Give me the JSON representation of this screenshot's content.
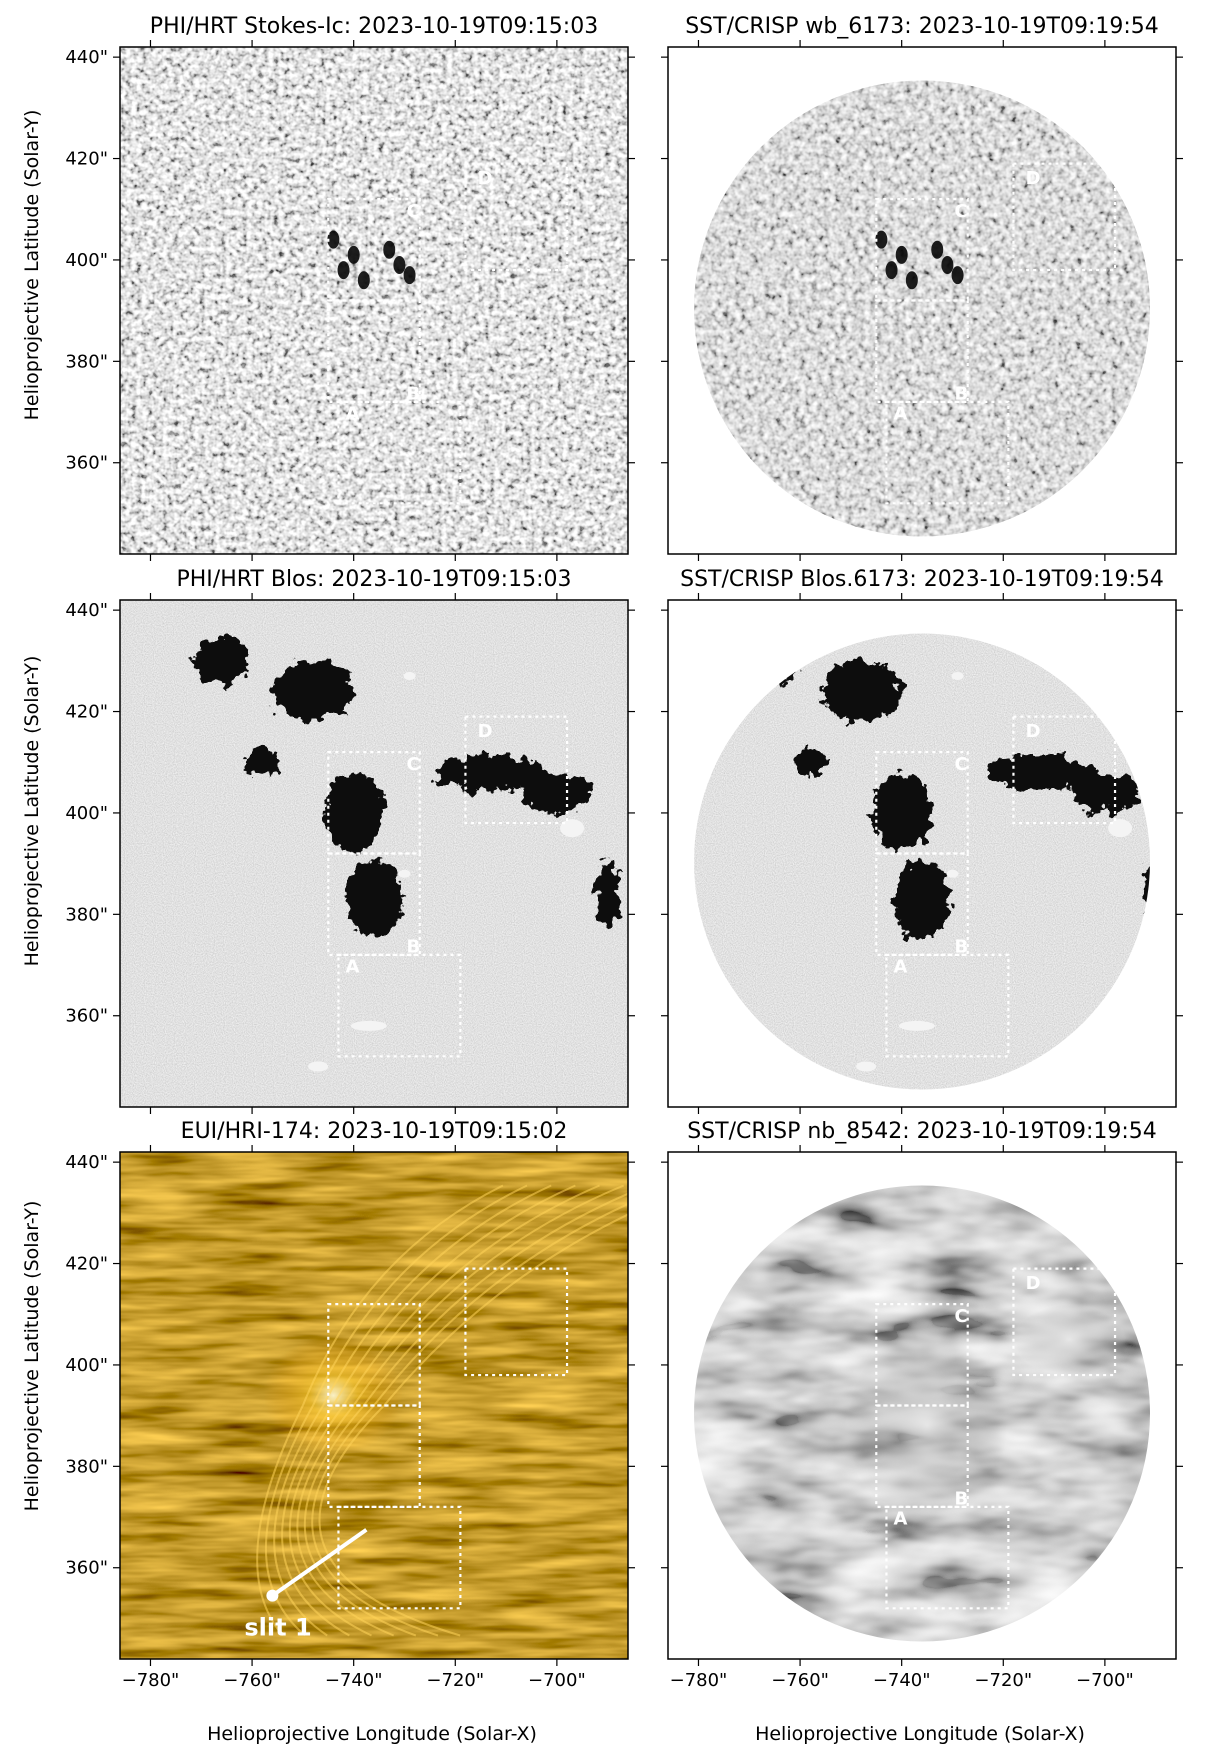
{
  "figure": {
    "xlabel": "Helioprojective Longitude (Solar-X)",
    "ylabel": "Helioprojective Latitude (Solar-Y)",
    "xticks": [
      "−780\"",
      "−760\"",
      "−740\"",
      "−720\"",
      "−700\""
    ],
    "yticks": [
      "440\"",
      "420\"",
      "400\"",
      "380\"",
      "360\""
    ],
    "panels": [
      {
        "id": "phi-ic",
        "title": "PHI/HRT Stokes-Ic: 2023-10-19T09:15:03",
        "style": "granulation",
        "disk": false,
        "labels": [
          "A",
          "B",
          "C",
          "D"
        ]
      },
      {
        "id": "sst-wb",
        "title": "SST/CRISP wb_6173: 2023-10-19T09:19:54",
        "style": "granulation",
        "disk": true,
        "labels": [
          "A",
          "B",
          "C",
          "D"
        ]
      },
      {
        "id": "phi-blos",
        "title": "PHI/HRT Blos: 2023-10-19T09:15:03",
        "style": "magnetogram",
        "disk": false,
        "labels": [
          "A",
          "B",
          "C",
          "D"
        ]
      },
      {
        "id": "sst-blos",
        "title": "SST/CRISP Blos.6173: 2023-10-19T09:19:54",
        "style": "magnetogram",
        "disk": true,
        "labels": [
          "A",
          "B",
          "C",
          "D"
        ]
      },
      {
        "id": "eui-174",
        "title": "EUI/HRI-174: 2023-10-19T09:15:02",
        "style": "euv",
        "disk": false,
        "labels": [],
        "slit_label": "slit 1"
      },
      {
        "id": "sst-8542",
        "title": "SST/CRISP nb_8542: 2023-10-19T09:19:54",
        "style": "chromosphere",
        "disk": true,
        "labels": [
          "A",
          "B",
          "C",
          "D"
        ]
      }
    ]
  }
}
